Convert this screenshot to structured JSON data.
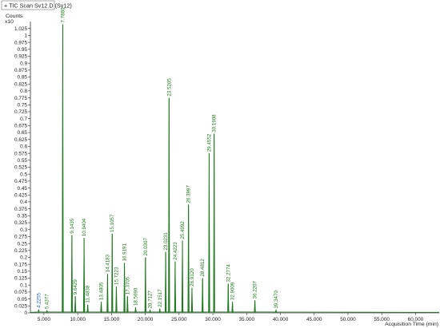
{
  "header": {
    "title": "+ TIC Scan Sv12.D (Sv12)",
    "y_unit_label": "Counts",
    "y_multiplier_label": "x10"
  },
  "colors": {
    "trace": "#1f7a1f",
    "peak_label": "#1f7a1f",
    "peak_label_blue": "#1f5fbf",
    "axis": "#333333",
    "title_border": "#6f6f6f"
  },
  "chart_data": {
    "type": "line",
    "title": "+ TIC Scan Sv12.D (Sv12)",
    "xlabel": "Acquisition Time (min)",
    "ylabel": "Counts",
    "y_multiplier": "x10",
    "xlim": [
      3.0,
      63.5
    ],
    "ylim": [
      0,
      1.05
    ],
    "x_ticks": [
      "5.000",
      "10.000",
      "15.000",
      "20.000",
      "25.000",
      "30.000",
      "35.000",
      "40.000",
      "45.000",
      "50.000",
      "55.000",
      "60.000"
    ],
    "x_tick_values": [
      5,
      10,
      15,
      20,
      25,
      30,
      35,
      40,
      45,
      50,
      55,
      60
    ],
    "y_ticks": [
      "0",
      "0.025",
      "0.05",
      "0.075",
      "0.1",
      "0.125",
      "0.15",
      "0.175",
      "0.2",
      "0.225",
      "0.25",
      "0.275",
      "0.3",
      "0.325",
      "0.35",
      "0.375",
      "0.4",
      "0.425",
      "0.45",
      "0.475",
      "0.5",
      "0.525",
      "0.55",
      "0.575",
      "0.6",
      "0.625",
      "0.65",
      "0.675",
      "0.7",
      "0.725",
      "0.75",
      "0.775",
      "0.8",
      "0.825",
      "0.85",
      "0.875",
      "0.9",
      "0.925",
      "0.95",
      "0.975",
      "1",
      "1.025"
    ],
    "y_tick_values": [
      0,
      0.025,
      0.05,
      0.075,
      0.1,
      0.125,
      0.15,
      0.175,
      0.2,
      0.225,
      0.25,
      0.275,
      0.3,
      0.325,
      0.35,
      0.375,
      0.4,
      0.425,
      0.45,
      0.475,
      0.5,
      0.525,
      0.55,
      0.575,
      0.6,
      0.625,
      0.65,
      0.675,
      0.7,
      0.725,
      0.75,
      0.775,
      0.8,
      0.825,
      0.85,
      0.875,
      0.9,
      0.925,
      0.95,
      0.975,
      1.0,
      1.025
    ],
    "grid": false,
    "peaks": [
      {
        "x": 4.2255,
        "y": 0.012,
        "label": "4.2255",
        "highlight": true
      },
      {
        "x": 5.4377,
        "y": 0.008,
        "label": "5.4377"
      },
      {
        "x": 7.788,
        "y": 1.04,
        "label": "7.7880"
      },
      {
        "x": 9.1435,
        "y": 0.28,
        "label": "9.1435"
      },
      {
        "x": 9.6429,
        "y": 0.06,
        "label": "9.6429"
      },
      {
        "x": 10.9404,
        "y": 0.27,
        "label": "10.9404"
      },
      {
        "x": 11.4838,
        "y": 0.03,
        "label": "11.4838"
      },
      {
        "x": 13.4805,
        "y": 0.04,
        "label": "13.4805"
      },
      {
        "x": 14.4183,
        "y": 0.14,
        "label": "14.4183"
      },
      {
        "x": 15.1057,
        "y": 0.285,
        "label": "15.1057"
      },
      {
        "x": 15.7223,
        "y": 0.095,
        "label": "15.7223"
      },
      {
        "x": 16.9191,
        "y": 0.18,
        "label": "16.9191"
      },
      {
        "x": 17.3705,
        "y": 0.06,
        "label": "17.3705"
      },
      {
        "x": 18.569,
        "y": 0.02,
        "label": "18.5690"
      },
      {
        "x": 20.0307,
        "y": 0.2,
        "label": "20.0307"
      },
      {
        "x": 20.7127,
        "y": 0.01,
        "label": "20.7127"
      },
      {
        "x": 22.1517,
        "y": 0.015,
        "label": "22.1517"
      },
      {
        "x": 23.0231,
        "y": 0.22,
        "label": "23.0231"
      },
      {
        "x": 23.5205,
        "y": 0.775,
        "label": "23.5205"
      },
      {
        "x": 24.4223,
        "y": 0.185,
        "label": "24.4223"
      },
      {
        "x": 25.4992,
        "y": 0.26,
        "label": "25.4992"
      },
      {
        "x": 26.3997,
        "y": 0.39,
        "label": "26.3997"
      },
      {
        "x": 26.912,
        "y": 0.09,
        "label": "26.9120"
      },
      {
        "x": 28.4812,
        "y": 0.125,
        "label": "28.4812"
      },
      {
        "x": 29.4552,
        "y": 0.575,
        "label": "29.4552"
      },
      {
        "x": 30.1908,
        "y": 0.645,
        "label": "30.1908"
      },
      {
        "x": 32.2774,
        "y": 0.105,
        "label": "32.2774"
      },
      {
        "x": 32.9009,
        "y": 0.04,
        "label": "32.9009"
      },
      {
        "x": 36.2207,
        "y": 0.045,
        "label": "36.2207"
      },
      {
        "x": 39.347,
        "y": 0.01,
        "label": "39.3470"
      }
    ]
  }
}
